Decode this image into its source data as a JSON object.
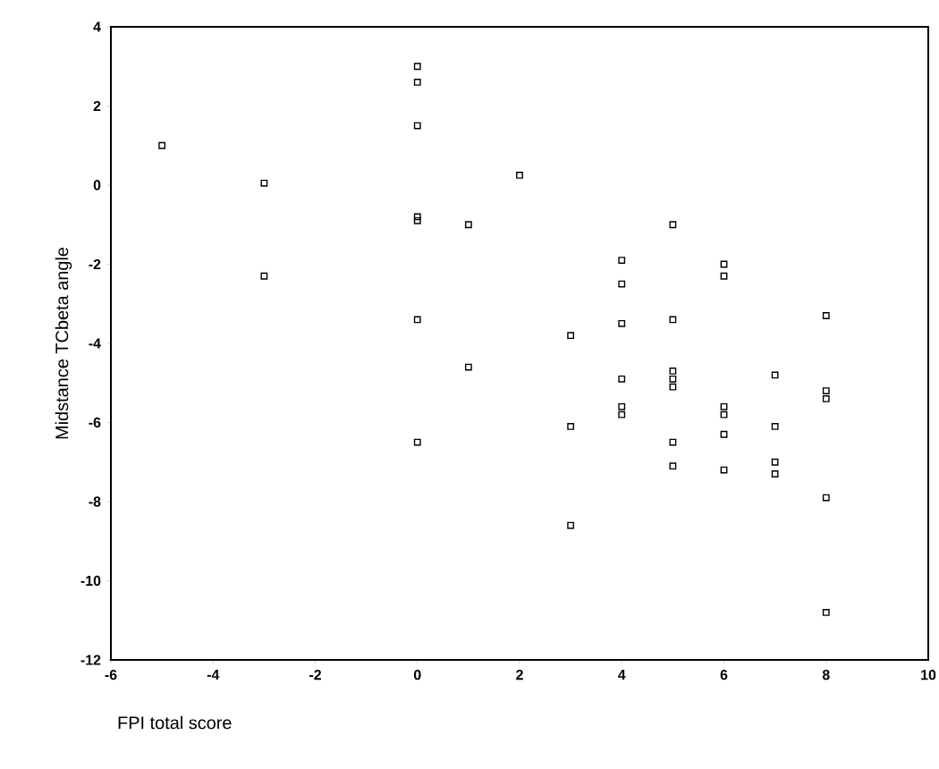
{
  "chart_data": {
    "type": "scatter",
    "xlabel": "FPI total score",
    "ylabel": "Midstance TCbeta angle",
    "x": [
      -5,
      -3,
      -3,
      0,
      0,
      0,
      0,
      0,
      0,
      0,
      1,
      1,
      2,
      3,
      3,
      3,
      4,
      4,
      4,
      4,
      4,
      4,
      5,
      5,
      5,
      5,
      5,
      5,
      5,
      6,
      6,
      6,
      6,
      6,
      6,
      7,
      7,
      7,
      7,
      8,
      8,
      8,
      8,
      8
    ],
    "series": [
      {
        "color": "#000000",
        "values": [
          1.0,
          0.05,
          -2.3,
          3.0,
          2.6,
          1.5,
          -0.8,
          -0.9,
          -3.4,
          -6.5,
          -1.0,
          -4.6,
          0.25,
          -3.8,
          -6.1,
          -8.6,
          -1.9,
          -2.5,
          -3.5,
          -4.9,
          -5.6,
          -5.8,
          -1.0,
          -3.4,
          -4.7,
          -4.9,
          -5.1,
          -6.5,
          -7.1,
          -2.0,
          -2.3,
          -5.6,
          -5.8,
          -6.3,
          -7.2,
          -4.8,
          -6.1,
          -7.0,
          -7.3,
          -3.3,
          -5.2,
          -5.4,
          -7.9,
          -10.8
        ]
      }
    ],
    "xlim": [
      -6,
      10
    ],
    "ylim": [
      -12,
      4
    ],
    "xticks": [
      -6,
      -4,
      -2,
      0,
      2,
      4,
      6,
      8,
      10
    ],
    "yticks": [
      -12,
      -10,
      -8,
      -6,
      -4,
      -2,
      0,
      2,
      4
    ],
    "marker": "square",
    "grid": false
  }
}
